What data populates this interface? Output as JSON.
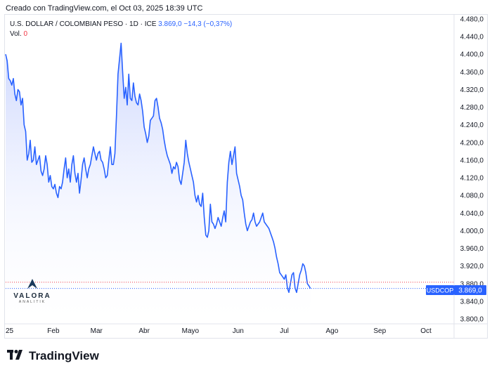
{
  "header": {
    "created_text": "Creado con TradingView.com, el Oct 03, 2025 18:39 UTC"
  },
  "legend": {
    "instrument": "U.S. DOLLAR / COLOMBIAN PESO · 1D · ICE",
    "last_value": "3.869,0",
    "change": "−14,3 (−0,37%)",
    "vol_label": "Vol.",
    "vol_value": "0"
  },
  "watermark": {
    "name": "VALORA",
    "sub": "ANALITIK"
  },
  "brand": {
    "name": "TradingView"
  },
  "price_tags": {
    "symbol": "USDCOP",
    "price": "3.869,0"
  },
  "colors": {
    "line": "#2962ff",
    "area_top": "#c7d2fe",
    "area_bottom": "#ffffff",
    "symbol_tag": "#2962ff",
    "ref_line_red": "#f23645"
  },
  "chart_data": {
    "type": "area",
    "title": "U.S. DOLLAR / COLOMBIAN PESO · 1D · ICE",
    "xlabel": "",
    "ylabel": "",
    "ylim": [
      3780,
      4500
    ],
    "y_ticks": [
      "4.480,0",
      "4.440,0",
      "4.400,0",
      "4.360,0",
      "4.320,0",
      "4.280,0",
      "4.240,0",
      "4.200,0",
      "4.160,0",
      "4.120,0",
      "4.080,0",
      "4.040,0",
      "4.000,0",
      "3.960,0",
      "3.920,0",
      "3.880,0",
      "3.840,0",
      "3.800,0"
    ],
    "y_tick_values": [
      4480,
      4440,
      4400,
      4360,
      4320,
      4280,
      4240,
      4200,
      4160,
      4120,
      4080,
      4040,
      4000,
      3960,
      3920,
      3880,
      3840,
      3800
    ],
    "x_ticks": [
      "25",
      "Feb",
      "Mar",
      "Abr",
      "Mayo",
      "Jun",
      "Jul",
      "Ago",
      "Sep",
      "Oct"
    ],
    "x_tick_days": [
      0,
      31,
      59,
      90,
      120,
      151,
      181,
      212,
      243,
      273
    ],
    "grid": false,
    "legend_position": "top-left",
    "reference_price": 3883.3,
    "last_price": 3869.0,
    "series": [
      {
        "name": "USDCOP",
        "points": [
          [
            0,
            4400
          ],
          [
            1,
            4385
          ],
          [
            2,
            4345
          ],
          [
            3,
            4340
          ],
          [
            4,
            4330
          ],
          [
            5,
            4345
          ],
          [
            6,
            4310
          ],
          [
            7,
            4295
          ],
          [
            8,
            4320
          ],
          [
            9,
            4315
          ],
          [
            10,
            4285
          ],
          [
            11,
            4300
          ],
          [
            12,
            4240
          ],
          [
            13,
            4225
          ],
          [
            14,
            4160
          ],
          [
            15,
            4175
          ],
          [
            16,
            4205
          ],
          [
            17,
            4155
          ],
          [
            18,
            4160
          ],
          [
            19,
            4190
          ],
          [
            20,
            4150
          ],
          [
            21,
            4160
          ],
          [
            22,
            4170
          ],
          [
            23,
            4135
          ],
          [
            24,
            4125
          ],
          [
            25,
            4140
          ],
          [
            26,
            4170
          ],
          [
            27,
            4150
          ],
          [
            28,
            4110
          ],
          [
            29,
            4125
          ],
          [
            30,
            4100
          ],
          [
            31,
            4095
          ],
          [
            32,
            4105
          ],
          [
            33,
            4085
          ],
          [
            34,
            4075
          ],
          [
            35,
            4100
          ],
          [
            36,
            4095
          ],
          [
            37,
            4110
          ],
          [
            38,
            4140
          ],
          [
            39,
            4165
          ],
          [
            40,
            4120
          ],
          [
            41,
            4140
          ],
          [
            42,
            4110
          ],
          [
            43,
            4150
          ],
          [
            44,
            4170
          ],
          [
            45,
            4130
          ],
          [
            46,
            4110
          ],
          [
            47,
            4130
          ],
          [
            48,
            4085
          ],
          [
            49,
            4115
          ],
          [
            50,
            4150
          ],
          [
            51,
            4165
          ],
          [
            52,
            4140
          ],
          [
            53,
            4120
          ],
          [
            54,
            4140
          ],
          [
            55,
            4150
          ],
          [
            56,
            4170
          ],
          [
            57,
            4190
          ],
          [
            58,
            4175
          ],
          [
            59,
            4160
          ],
          [
            60,
            4175
          ],
          [
            61,
            4180
          ],
          [
            62,
            4160
          ],
          [
            63,
            4155
          ],
          [
            64,
            4140
          ],
          [
            65,
            4120
          ],
          [
            66,
            4125
          ],
          [
            67,
            4160
          ],
          [
            68,
            4190
          ],
          [
            69,
            4150
          ],
          [
            70,
            4150
          ],
          [
            71,
            4175
          ],
          [
            72,
            4260
          ],
          [
            73,
            4355
          ],
          [
            74,
            4390
          ],
          [
            75,
            4425
          ],
          [
            76,
            4360
          ],
          [
            77,
            4300
          ],
          [
            78,
            4325
          ],
          [
            79,
            4285
          ],
          [
            80,
            4355
          ],
          [
            81,
            4300
          ],
          [
            82,
            4295
          ],
          [
            83,
            4335
          ],
          [
            84,
            4305
          ],
          [
            85,
            4290
          ],
          [
            86,
            4285
          ],
          [
            87,
            4310
          ],
          [
            88,
            4295
          ],
          [
            89,
            4270
          ],
          [
            90,
            4235
          ],
          [
            91,
            4220
          ],
          [
            92,
            4200
          ],
          [
            93,
            4215
          ],
          [
            94,
            4250
          ],
          [
            95,
            4255
          ],
          [
            96,
            4260
          ],
          [
            97,
            4295
          ],
          [
            98,
            4300
          ],
          [
            99,
            4280
          ],
          [
            100,
            4255
          ],
          [
            101,
            4245
          ],
          [
            102,
            4230
          ],
          [
            103,
            4205
          ],
          [
            104,
            4185
          ],
          [
            105,
            4170
          ],
          [
            106,
            4160
          ],
          [
            107,
            4150
          ],
          [
            108,
            4130
          ],
          [
            109,
            4145
          ],
          [
            110,
            4140
          ],
          [
            111,
            4155
          ],
          [
            112,
            4145
          ],
          [
            113,
            4115
          ],
          [
            114,
            4105
          ],
          [
            115,
            4130
          ],
          [
            116,
            4155
          ],
          [
            117,
            4205
          ],
          [
            118,
            4175
          ],
          [
            119,
            4155
          ],
          [
            120,
            4140
          ],
          [
            121,
            4125
          ],
          [
            122,
            4110
          ],
          [
            123,
            4080
          ],
          [
            124,
            4065
          ],
          [
            125,
            4080
          ],
          [
            126,
            4060
          ],
          [
            127,
            4055
          ],
          [
            128,
            4085
          ],
          [
            129,
            4030
          ],
          [
            130,
            3990
          ],
          [
            131,
            3985
          ],
          [
            132,
            4000
          ],
          [
            133,
            4060
          ],
          [
            134,
            4020
          ],
          [
            135,
            4015
          ],
          [
            136,
            4005
          ],
          [
            137,
            4015
          ],
          [
            138,
            4030
          ],
          [
            139,
            4020
          ],
          [
            140,
            4010
          ],
          [
            141,
            4030
          ],
          [
            142,
            4045
          ],
          [
            143,
            4020
          ],
          [
            144,
            4110
          ],
          [
            145,
            4155
          ],
          [
            146,
            4180
          ],
          [
            147,
            4150
          ],
          [
            148,
            4170
          ],
          [
            149,
            4190
          ],
          [
            150,
            4130
          ],
          [
            151,
            4115
          ],
          [
            152,
            4100
          ],
          [
            153,
            4080
          ],
          [
            154,
            4070
          ],
          [
            155,
            4040
          ],
          [
            156,
            4015
          ],
          [
            157,
            4000
          ],
          [
            158,
            4010
          ],
          [
            159,
            4020
          ],
          [
            160,
            4025
          ],
          [
            161,
            4040
          ],
          [
            162,
            4020
          ],
          [
            163,
            4010
          ],
          [
            164,
            4015
          ],
          [
            165,
            4020
          ],
          [
            166,
            4030
          ],
          [
            167,
            4040
          ],
          [
            168,
            4020
          ],
          [
            169,
            4015
          ],
          [
            170,
            4010
          ],
          [
            171,
            4005
          ],
          [
            172,
            3995
          ],
          [
            173,
            3985
          ],
          [
            174,
            3975
          ],
          [
            175,
            3960
          ],
          [
            176,
            3940
          ],
          [
            177,
            3925
          ],
          [
            178,
            3905
          ],
          [
            179,
            3900
          ],
          [
            180,
            3895
          ],
          [
            181,
            3890
          ],
          [
            182,
            3900
          ],
          [
            183,
            3870
          ],
          [
            184,
            3860
          ],
          [
            185,
            3880
          ],
          [
            186,
            3900
          ],
          [
            187,
            3905
          ],
          [
            188,
            3870
          ],
          [
            189,
            3860
          ],
          [
            190,
            3880
          ],
          [
            191,
            3900
          ],
          [
            192,
            3910
          ],
          [
            193,
            3925
          ],
          [
            194,
            3920
          ],
          [
            195,
            3905
          ],
          [
            196,
            3880
          ],
          [
            197,
            3875
          ],
          [
            198,
            3869
          ]
        ]
      }
    ]
  }
}
